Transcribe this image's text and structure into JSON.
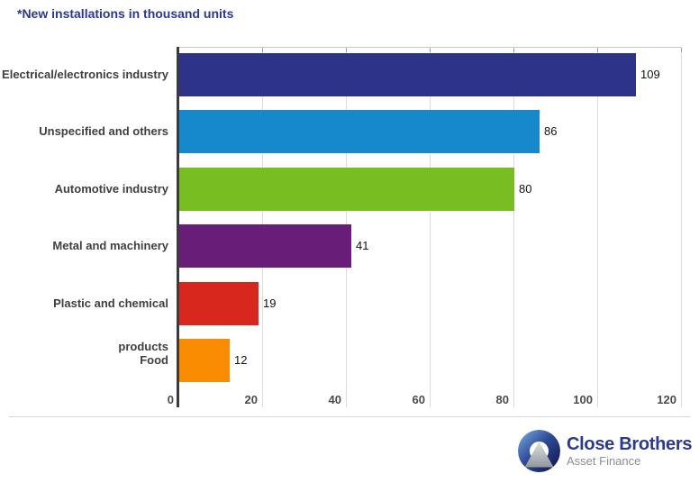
{
  "title": "*New installations in thousand units",
  "chart_data": {
    "type": "bar",
    "orientation": "horizontal",
    "title": "*New installations in thousand units",
    "categories": [
      "Electrical/electronics industry",
      "Unspecified and others",
      "Automotive industry",
      "Metal and machinery",
      "Plastic and chemical products",
      "Food"
    ],
    "values": [
      109,
      86,
      80,
      41,
      19,
      12
    ],
    "bar_colors": [
      "#2c3389",
      "#1689cd",
      "#78bd22",
      "#681e79",
      "#d8281e",
      "#f98c00"
    ],
    "xlim": [
      0,
      120
    ],
    "xticks": [
      0,
      20,
      40,
      60,
      80,
      100,
      120
    ],
    "grid": true,
    "value_labels_shown": true,
    "legend": "none"
  },
  "footer": {
    "logo": {
      "brand": "Close Brothers",
      "sub": "Asset Finance",
      "brand_color": "#2b3a8d",
      "sub_color": "#8a8f94",
      "icon": "donut-ring-with-mountain"
    }
  },
  "colors": {
    "title": "#2c3792",
    "category_label": "#3f3f3f",
    "tick_label": "#4b4b4b",
    "value_label": "#111111",
    "gridline": "#dcdcdc",
    "axis_line": "#3b3b3b",
    "background": "#ffffff"
  }
}
